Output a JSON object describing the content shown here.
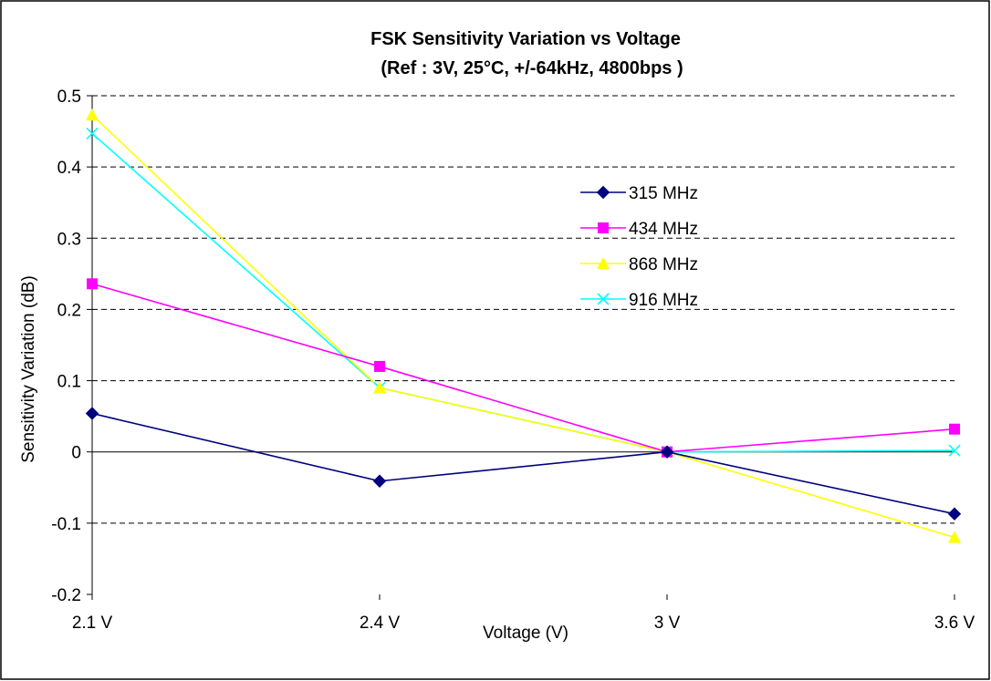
{
  "chart_data": {
    "type": "line",
    "title": "FSK Sensitivity Variation vs Voltage",
    "subtitle": "(Ref : 3V, 25°C, +/-64kHz, 4800bps )",
    "xlabel": "Voltage (V)",
    "ylabel": "Sensitivity Variation (dB)",
    "categories": [
      "2.1 V",
      "2.4 V",
      "3 V",
      "3.6 V"
    ],
    "ylim": [
      -0.2,
      0.5
    ],
    "yticks": [
      "0.5",
      "0.4",
      "0.3",
      "0.2",
      "0.1",
      "0",
      "-0.1",
      "-0.2"
    ],
    "ytick_values": [
      0.5,
      0.4,
      0.3,
      0.2,
      0.1,
      0,
      -0.1,
      -0.2
    ],
    "grid": "horizontal dashed",
    "legend_position": "right",
    "series": [
      {
        "name": "315 MHz",
        "color": "#000080",
        "marker": "diamond",
        "values": [
          0.054,
          -0.041,
          0.0,
          -0.087
        ]
      },
      {
        "name": "434 MHz",
        "color": "#FF00FF",
        "marker": "square",
        "values": [
          0.236,
          0.12,
          0.0,
          0.032
        ]
      },
      {
        "name": "868 MHz",
        "color": "#FFFF00",
        "marker": "triangle",
        "values": [
          0.473,
          0.09,
          0.0,
          -0.12
        ]
      },
      {
        "name": "916 MHz",
        "color": "#00FFFF",
        "marker": "x",
        "values": [
          0.447,
          0.09,
          0.0,
          0.002
        ]
      }
    ]
  }
}
